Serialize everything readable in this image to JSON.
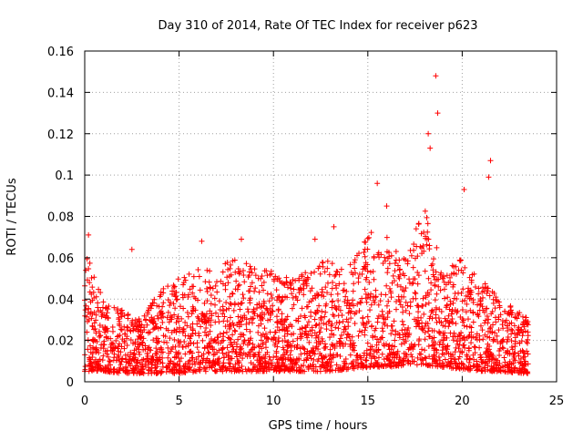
{
  "chart_data": {
    "type": "scatter",
    "title": "Day 310 of 2014, Rate Of TEC Index for receiver p623",
    "xlabel": "GPS time / hours",
    "ylabel": "ROTI / TECUs",
    "xlim": [
      0,
      25
    ],
    "ylim": [
      0,
      0.16
    ],
    "xticks": [
      0,
      5,
      10,
      15,
      20,
      25
    ],
    "xtick_labels": [
      "0",
      "5",
      "10",
      "15",
      "20",
      "25"
    ],
    "yticks": [
      0,
      0.02,
      0.04,
      0.06,
      0.08,
      0.1,
      0.12,
      0.14,
      0.16
    ],
    "ytick_labels": [
      "0",
      "0.02",
      "0.04",
      "0.06",
      "0.08",
      "0.1",
      "0.12",
      "0.14",
      "0.16"
    ],
    "grid": true,
    "marker": "+",
    "marker_color": "#ff0000",
    "x_data_range": [
      0,
      23.5
    ],
    "notable_points": [
      {
        "x": 0.2,
        "y": 0.071
      },
      {
        "x": 2.5,
        "y": 0.064
      },
      {
        "x": 6.2,
        "y": 0.068
      },
      {
        "x": 8.3,
        "y": 0.069
      },
      {
        "x": 12.2,
        "y": 0.069
      },
      {
        "x": 13.2,
        "y": 0.075
      },
      {
        "x": 15.5,
        "y": 0.096
      },
      {
        "x": 16.0,
        "y": 0.085
      },
      {
        "x": 18.2,
        "y": 0.12
      },
      {
        "x": 18.3,
        "y": 0.113
      },
      {
        "x": 18.6,
        "y": 0.148
      },
      {
        "x": 18.7,
        "y": 0.13
      },
      {
        "x": 20.1,
        "y": 0.093
      },
      {
        "x": 21.5,
        "y": 0.107
      },
      {
        "x": 21.4,
        "y": 0.099
      }
    ],
    "envelope": [
      {
        "x": 0,
        "lo": 0.005,
        "hi": 0.065
      },
      {
        "x": 1,
        "lo": 0.005,
        "hi": 0.04
      },
      {
        "x": 2,
        "lo": 0.004,
        "hi": 0.035
      },
      {
        "x": 3,
        "lo": 0.004,
        "hi": 0.03
      },
      {
        "x": 4,
        "lo": 0.004,
        "hi": 0.045
      },
      {
        "x": 5,
        "lo": 0.004,
        "hi": 0.05
      },
      {
        "x": 6,
        "lo": 0.005,
        "hi": 0.055
      },
      {
        "x": 7,
        "lo": 0.005,
        "hi": 0.055
      },
      {
        "x": 8,
        "lo": 0.005,
        "hi": 0.06
      },
      {
        "x": 9,
        "lo": 0.005,
        "hi": 0.055
      },
      {
        "x": 10,
        "lo": 0.005,
        "hi": 0.055
      },
      {
        "x": 11,
        "lo": 0.005,
        "hi": 0.05
      },
      {
        "x": 12,
        "lo": 0.005,
        "hi": 0.055
      },
      {
        "x": 13,
        "lo": 0.005,
        "hi": 0.06
      },
      {
        "x": 14,
        "lo": 0.006,
        "hi": 0.06
      },
      {
        "x": 15,
        "lo": 0.007,
        "hi": 0.075
      },
      {
        "x": 16,
        "lo": 0.007,
        "hi": 0.07
      },
      {
        "x": 17,
        "lo": 0.008,
        "hi": 0.06
      },
      {
        "x": 18,
        "lo": 0.008,
        "hi": 0.085
      },
      {
        "x": 19,
        "lo": 0.007,
        "hi": 0.055
      },
      {
        "x": 20,
        "lo": 0.006,
        "hi": 0.06
      },
      {
        "x": 21,
        "lo": 0.005,
        "hi": 0.05
      },
      {
        "x": 22,
        "lo": 0.005,
        "hi": 0.04
      },
      {
        "x": 23,
        "lo": 0.004,
        "hi": 0.035
      },
      {
        "x": 23.5,
        "lo": 0.004,
        "hi": 0.03
      }
    ]
  }
}
